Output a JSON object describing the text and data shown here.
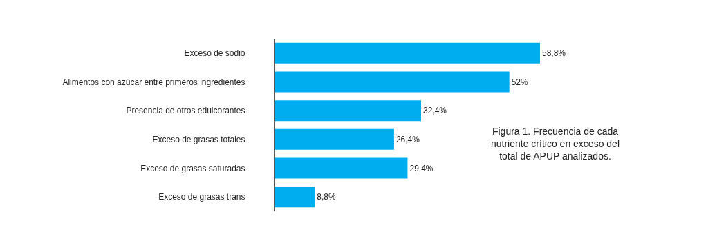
{
  "chart_data": {
    "type": "bar",
    "orientation": "horizontal",
    "categories": [
      "Exceso de sodio",
      "Alimentos con azúcar entre primeros ingredientes",
      "Presencia de otros edulcorantes",
      "Exceso de grasas totales",
      "Exceso de grasas saturadas",
      "Exceso de grasas trans"
    ],
    "values": [
      58.8,
      52,
      32.4,
      26.4,
      29.4,
      8.8
    ],
    "value_labels": [
      "58,8%",
      "52%",
      "32,4%",
      "26,4%",
      "29,4%",
      "8,8%"
    ],
    "color": "#00aeef",
    "tick_labels": "y",
    "legend": false,
    "annotations": [
      "Figura 1. Frecuencia de cada nutriente crítico en exceso del total de APUP analizados."
    ]
  }
}
